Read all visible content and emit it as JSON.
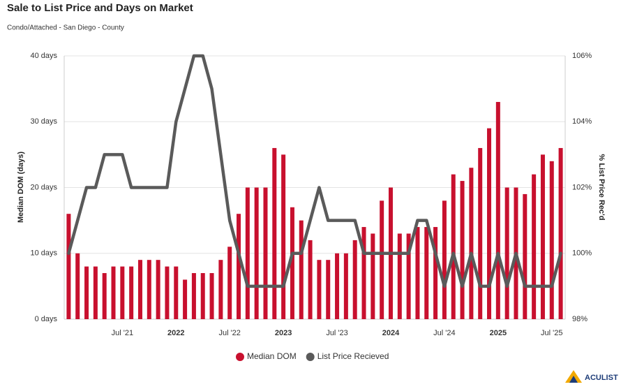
{
  "chart_data": {
    "type": "bar-line",
    "title": "Sale to List Price and Days on Market",
    "subtitle": "Condo/Attached - San Diego - County",
    "y_label": "Median DOM (days)",
    "y2_label": "% List Price Rec'd",
    "categories": [
      null,
      null,
      null,
      null,
      null,
      null,
      "Jul '21",
      null,
      null,
      null,
      null,
      null,
      "2022",
      null,
      null,
      null,
      null,
      null,
      "Jul '22",
      null,
      null,
      null,
      null,
      null,
      "2023",
      null,
      null,
      null,
      null,
      null,
      "Jul '23",
      null,
      null,
      null,
      null,
      null,
      "2024",
      null,
      null,
      null,
      null,
      null,
      "Jul '24",
      null,
      null,
      null,
      null,
      null,
      "2025",
      null,
      null,
      null,
      null,
      null,
      "Jul '25",
      null
    ],
    "series": [
      {
        "name": "Median DOM",
        "type": "bar",
        "color": "#c8102e",
        "values": [
          16,
          10,
          8,
          8,
          7,
          8,
          8,
          8,
          9,
          9,
          9,
          8,
          8,
          6,
          7,
          7,
          7,
          9,
          11,
          16,
          20,
          20,
          20,
          26,
          25,
          17,
          15,
          12,
          9,
          9,
          10,
          10,
          12,
          14,
          13,
          18,
          20,
          13,
          13,
          14,
          14,
          14,
          18,
          22,
          21,
          23,
          26,
          29,
          33,
          20,
          20,
          19,
          22,
          25,
          24,
          26
        ]
      },
      {
        "name": "List Price Recieved",
        "type": "line",
        "axis": "y2",
        "color": "#5a5a5a",
        "values": [
          100,
          101,
          102,
          102,
          103,
          103,
          103,
          102,
          102,
          102,
          102,
          102,
          104,
          105,
          106,
          106,
          105,
          103,
          101,
          100,
          99,
          99,
          99,
          99,
          99,
          100,
          100,
          101,
          102,
          101,
          101,
          101,
          101,
          100,
          100,
          100,
          100,
          100,
          100,
          101,
          101,
          100,
          99,
          100,
          99,
          100,
          99,
          99,
          100,
          99,
          100,
          99,
          99,
          99,
          99,
          100
        ]
      }
    ],
    "ylim": [
      0,
      40
    ],
    "yticks": [
      {
        "value": 0,
        "label": "0 days"
      },
      {
        "value": 10,
        "label": "10 days"
      },
      {
        "value": 20,
        "label": "20 days"
      },
      {
        "value": 30,
        "label": "30 days"
      },
      {
        "value": 40,
        "label": "40 days"
      }
    ],
    "y2lim": [
      98,
      106
    ],
    "y2ticks": [
      {
        "value": 98,
        "label": "98%"
      },
      {
        "value": 100,
        "label": "100%"
      },
      {
        "value": 102,
        "label": "102%"
      },
      {
        "value": 104,
        "label": "104%"
      },
      {
        "value": 106,
        "label": "106%"
      }
    ],
    "grid": true,
    "legend": "bottom"
  },
  "brand": "ACULIST"
}
